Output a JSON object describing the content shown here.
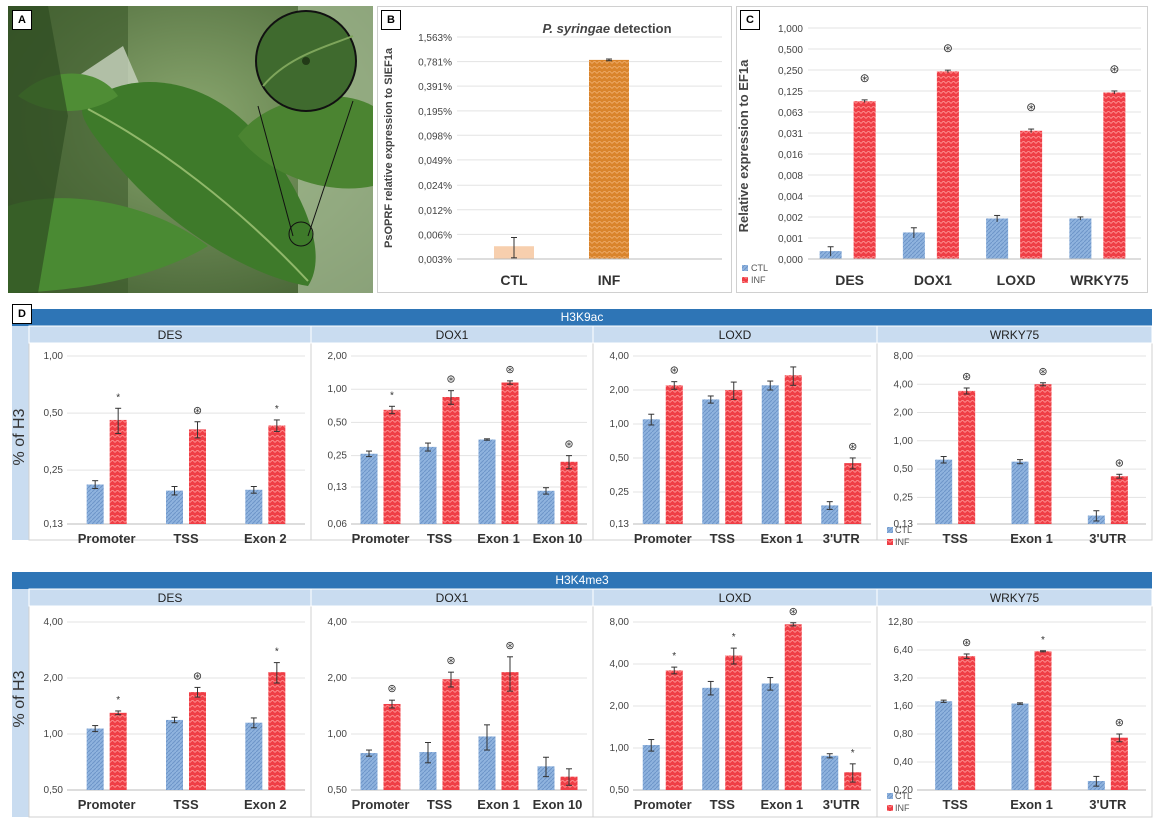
{
  "panel_letters": {
    "a": "A",
    "b": "B",
    "c": "C",
    "d": "D"
  },
  "photo": {
    "description_icon": "tomato-leaf-photo"
  },
  "bands": {
    "h3k9ac": "H3K9ac",
    "h3k4me3": "H3K4me3"
  },
  "strip_ylabel": "% of H3",
  "legend": {
    "ctl": "CTL",
    "inf": "INF"
  },
  "colors": {
    "ctl": "#8fb3de",
    "inf": "#ef3e46",
    "orange": "#d9842c",
    "peach": "#f7cfae",
    "band": "#2e75b6",
    "header": "#c9dcf0"
  },
  "chart_data": [
    {
      "id": "B",
      "type": "bar",
      "title_italic": "P. syringae",
      "title_rest": " detection",
      "ylabel": "PsOPRF relative expression to SIEF1a",
      "scale": "log2",
      "yticks": [
        "0,003%",
        "0,006%",
        "0,012%",
        "0,024%",
        "0,049%",
        "0,098%",
        "0,195%",
        "0,391%",
        "0,781%",
        "1,563%"
      ],
      "ytick_values": [
        0.003,
        0.006,
        0.012,
        0.024,
        0.049,
        0.098,
        0.195,
        0.391,
        0.781,
        1.563
      ],
      "categories": [
        "CTL",
        "INF"
      ],
      "values": [
        0.0043,
        0.82
      ],
      "errors": [
        0.0012,
        0.02
      ]
    },
    {
      "id": "C",
      "type": "bar",
      "ylabel": "Relative expression to EF1a",
      "scale": "log2",
      "yticks": [
        "0,000",
        "0,001",
        "0,002",
        "0,004",
        "0,008",
        "0,016",
        "0,031",
        "0,063",
        "0,125",
        "0,250",
        "0,500",
        "1,000"
      ],
      "categories": [
        "DES",
        "DOX1",
        "LOXD",
        "WRKY75"
      ],
      "series": [
        {
          "name": "CTL",
          "values": [
            0.00065,
            0.0012,
            0.0019,
            0.0019
          ],
          "errors": [
            0.0001,
            0.0002,
            0.0002,
            0.0001
          ]
        },
        {
          "name": "INF",
          "values": [
            0.09,
            0.24,
            0.034,
            0.12
          ],
          "errors": [
            0.004,
            0.01,
            0.002,
            0.006
          ]
        }
      ],
      "sig": [
        "⊛",
        "⊛",
        "⊛",
        "⊛"
      ]
    },
    {
      "id": "D-H3K9ac-DES",
      "type": "bar",
      "scale": "log2",
      "yticks": [
        "0,13",
        "0,25",
        "0,50",
        "1,00"
      ],
      "ytick_values": [
        0.13,
        0.25,
        0.5,
        1.0
      ],
      "categories": [
        "Promoter",
        "TSS",
        "Exon 2"
      ],
      "series": [
        {
          "name": "CTL",
          "values": [
            0.21,
            0.195,
            0.197
          ],
          "errors": [
            0.01,
            0.01,
            0.008
          ]
        },
        {
          "name": "INF",
          "values": [
            0.46,
            0.41,
            0.43
          ],
          "errors": [
            0.07,
            0.04,
            0.03
          ]
        }
      ],
      "sig": [
        "*",
        "⊛",
        "*"
      ]
    },
    {
      "id": "D-H3K9ac-DOX1",
      "type": "bar",
      "scale": "log2",
      "yticks": [
        "0,06",
        "0,13",
        "0,25",
        "0,50",
        "1,00",
        "2,00"
      ],
      "ytick_values": [
        0.06,
        0.13,
        0.25,
        0.5,
        1.0,
        2.0
      ],
      "categories": [
        "Promoter",
        "TSS",
        "Exon 1",
        "Exon 10"
      ],
      "series": [
        {
          "name": "CTL",
          "values": [
            0.26,
            0.3,
            0.35,
            0.12
          ],
          "errors": [
            0.015,
            0.025,
            0.005,
            0.008
          ]
        },
        {
          "name": "INF",
          "values": [
            0.65,
            0.85,
            1.15,
            0.22
          ],
          "errors": [
            0.05,
            0.12,
            0.04,
            0.03
          ]
        }
      ],
      "sig": [
        "*",
        "⊛",
        "⊛",
        "⊛"
      ]
    },
    {
      "id": "D-H3K9ac-LOXD",
      "type": "bar",
      "scale": "log2",
      "yticks": [
        "0,13",
        "0,25",
        "0,50",
        "1,00",
        "2,00",
        "4,00"
      ],
      "ytick_values": [
        0.13,
        0.25,
        0.5,
        1.0,
        2.0,
        4.0
      ],
      "categories": [
        "Promoter",
        "TSS",
        "Exon 1",
        "3'UTR"
      ],
      "series": [
        {
          "name": "CTL",
          "values": [
            1.1,
            1.65,
            2.2,
            0.19
          ],
          "errors": [
            0.12,
            0.12,
            0.2,
            0.015
          ]
        },
        {
          "name": "INF",
          "values": [
            2.2,
            2.0,
            2.7,
            0.45
          ],
          "errors": [
            0.17,
            0.35,
            0.5,
            0.05
          ]
        }
      ],
      "sig": [
        "⊛",
        "",
        "",
        "⊛"
      ]
    },
    {
      "id": "D-H3K9ac-WRKY75",
      "type": "bar",
      "scale": "log2",
      "yticks": [
        "0,13",
        "0,25",
        "0,50",
        "1,00",
        "2,00",
        "4,00",
        "8,00"
      ],
      "ytick_values": [
        0.13,
        0.25,
        0.5,
        1.0,
        2.0,
        4.0,
        8.0
      ],
      "categories": [
        "TSS",
        "Exon 1",
        "3'UTR"
      ],
      "series": [
        {
          "name": "CTL",
          "values": [
            0.63,
            0.6,
            0.16
          ],
          "errors": [
            0.05,
            0.03,
            0.02
          ]
        },
        {
          "name": "INF",
          "values": [
            3.4,
            4.0,
            0.42
          ],
          "errors": [
            0.25,
            0.15,
            0.02
          ]
        }
      ],
      "sig": [
        "⊛",
        "⊛",
        "⊛"
      ]
    },
    {
      "id": "D-H3K4me3-DES",
      "type": "bar",
      "scale": "log2",
      "yticks": [
        "0,50",
        "1,00",
        "2,00",
        "4,00"
      ],
      "ytick_values": [
        0.5,
        1.0,
        2.0,
        4.0
      ],
      "categories": [
        "Promoter",
        "TSS",
        "Exon 2"
      ],
      "series": [
        {
          "name": "CTL",
          "values": [
            1.07,
            1.19,
            1.15
          ],
          "errors": [
            0.04,
            0.04,
            0.07
          ]
        },
        {
          "name": "INF",
          "values": [
            1.3,
            1.68,
            2.15
          ],
          "errors": [
            0.03,
            0.1,
            0.27
          ]
        }
      ],
      "sig": [
        "*",
        "⊛",
        "*"
      ]
    },
    {
      "id": "D-H3K4me3-DOX1",
      "type": "bar",
      "scale": "log2",
      "yticks": [
        "0,50",
        "1,00",
        "2,00",
        "4,00"
      ],
      "ytick_values": [
        0.5,
        1.0,
        2.0,
        4.0
      ],
      "categories": [
        "Promoter",
        "TSS",
        "Exon 1",
        "Exon 10"
      ],
      "series": [
        {
          "name": "CTL",
          "values": [
            0.79,
            0.8,
            0.97,
            0.67
          ],
          "errors": [
            0.03,
            0.1,
            0.15,
            0.08
          ]
        },
        {
          "name": "INF",
          "values": [
            1.45,
            1.97,
            2.15,
            0.59
          ],
          "errors": [
            0.07,
            0.18,
            0.45,
            0.06
          ]
        }
      ],
      "sig": [
        "⊛",
        "⊛",
        "⊛",
        ""
      ]
    },
    {
      "id": "D-H3K4me3-LOXD",
      "type": "bar",
      "scale": "log2",
      "yticks": [
        "0,50",
        "1,00",
        "2,00",
        "4,00",
        "8,00"
      ],
      "ytick_values": [
        0.5,
        1.0,
        2.0,
        4.0,
        8.0
      ],
      "categories": [
        "Promoter",
        "TSS",
        "Exon 1",
        "3'UTR"
      ],
      "series": [
        {
          "name": "CTL",
          "values": [
            1.05,
            2.7,
            2.9,
            0.88
          ],
          "errors": [
            0.1,
            0.3,
            0.3,
            0.03
          ]
        },
        {
          "name": "INF",
          "values": [
            3.6,
            4.6,
            7.7,
            0.67
          ],
          "errors": [
            0.2,
            0.6,
            0.2,
            0.1
          ]
        }
      ],
      "sig": [
        "*",
        "*",
        "⊛",
        "*"
      ]
    },
    {
      "id": "D-H3K4me3-WRKY75",
      "type": "bar",
      "scale": "log2",
      "yticks": [
        "0,20",
        "0,40",
        "0,80",
        "1,60",
        "3,20",
        "6,40",
        "12,80"
      ],
      "ytick_values": [
        0.2,
        0.4,
        0.8,
        1.6,
        3.2,
        6.4,
        12.8
      ],
      "categories": [
        "TSS",
        "Exon 1",
        "3'UTR"
      ],
      "series": [
        {
          "name": "CTL",
          "values": [
            1.8,
            1.7,
            0.25
          ],
          "errors": [
            0.05,
            0.03,
            0.03
          ]
        },
        {
          "name": "INF",
          "values": [
            5.5,
            6.2,
            0.73
          ],
          "errors": [
            0.3,
            0.08,
            0.07
          ]
        }
      ],
      "sig": [
        "⊛",
        "*",
        "⊛"
      ]
    }
  ],
  "gene_headers": [
    "DES",
    "DOX1",
    "LOXD",
    "WRKY75"
  ]
}
